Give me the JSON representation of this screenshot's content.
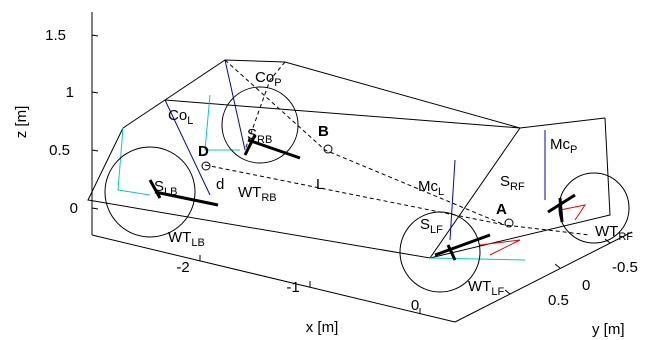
{
  "axes": {
    "z_label": "z [m]",
    "x_label": "x [m]",
    "y_label": "y [m]",
    "z_ticks": [
      "0",
      "0.5",
      "1",
      "1.5"
    ],
    "x_ticks": [
      "-2",
      "-1",
      "0"
    ],
    "y_ticks": [
      "-0.5",
      "0",
      "0.5"
    ]
  },
  "labels": [
    {
      "base": "Co",
      "sub": "P"
    },
    {
      "base": "Co",
      "sub": "L"
    },
    {
      "base": "S",
      "sub": "RB"
    },
    {
      "base": "B",
      "sub": null
    },
    {
      "base": "D",
      "sub": null
    },
    {
      "base": "d",
      "sub": null
    },
    {
      "base": "S",
      "sub": "LB"
    },
    {
      "base": "WT",
      "sub": "RB"
    },
    {
      "base": "L",
      "sub": null
    },
    {
      "base": "Mc",
      "sub": "L"
    },
    {
      "base": "S",
      "sub": "RF"
    },
    {
      "base": "Mc",
      "sub": "P"
    },
    {
      "base": "A",
      "sub": null
    },
    {
      "base": "S",
      "sub": "LF"
    },
    {
      "base": "WT",
      "sub": "LB"
    },
    {
      "base": "WT",
      "sub": "LF"
    },
    {
      "base": "WT",
      "sub": "RF"
    }
  ]
}
